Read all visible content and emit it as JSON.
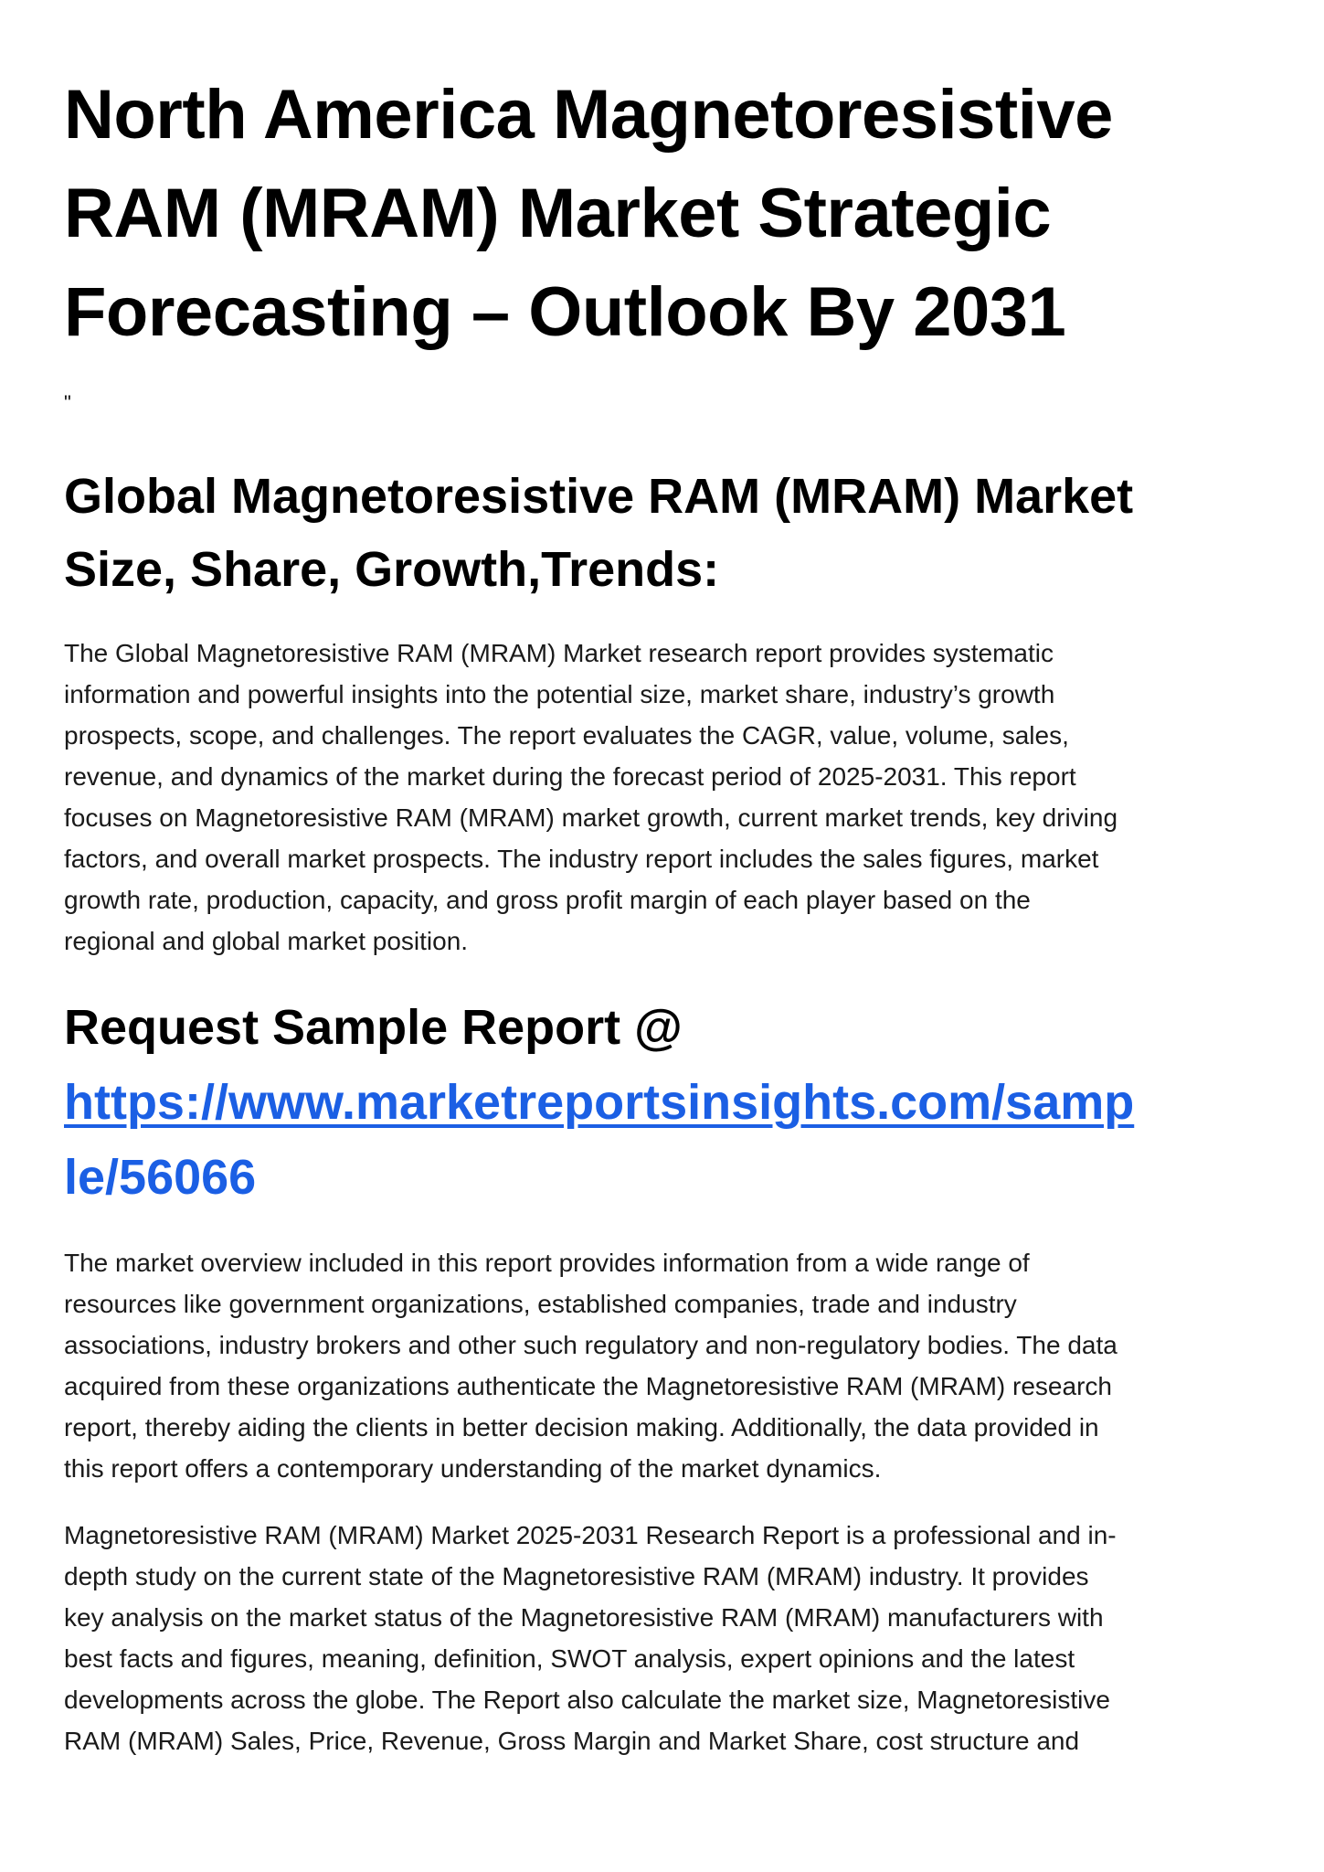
{
  "title_lines": [
    "North America Magnetoresistive",
    "RAM (MRAM) Market Strategic",
    "Forecasting – Outlook By 2031"
  ],
  "stray_quote": "\"",
  "section1": {
    "heading_lines": [
      "Global Magnetoresistive RAM (MRAM) Market",
      "Size, Share, Growth,Trends:"
    ],
    "paragraph_lines": [
      "The Global Magnetoresistive RAM (MRAM) Market research report provides systematic",
      "information and powerful insights into the potential size, market share, industry’s growth",
      "prospects, scope, and challenges. The report evaluates the CAGR, value, volume, sales,",
      "revenue, and dynamics of the market during the forecast period of 2025-2031. This report",
      "focuses on Magnetoresistive RAM (MRAM) market growth, current market trends, key driving",
      "factors, and overall market prospects. The industry report includes the sales figures, market",
      "growth rate, production, capacity, and gross profit margin of each player based on the",
      "regional and global market position."
    ]
  },
  "sample": {
    "heading": "Request Sample Report @",
    "link_lines": [
      "https://www.marketreportsinsights.com/samp",
      "le/56066"
    ],
    "link_color": "#1b5fe4"
  },
  "paragraph2_lines": [
    "The market overview included in this report provides information from a wide range of",
    "resources like government organizations, established companies, trade and industry",
    "associations, industry brokers and other such regulatory and non-regulatory bodies. The data",
    "acquired from these organizations authenticate the Magnetoresistive RAM (MRAM) research",
    "report, thereby aiding the clients in better decision making. Additionally, the data provided in",
    "this report offers a contemporary understanding of the market dynamics."
  ],
  "paragraph3_lines": [
    "Magnetoresistive RAM (MRAM) Market 2025-2031 Research Report is a professional and in-",
    "depth study on the current state of the Magnetoresistive RAM (MRAM) industry. It provides",
    "key analysis on the market status of the Magnetoresistive RAM (MRAM) manufacturers with",
    "best facts and figures, meaning, definition, SWOT analysis, expert opinions and the latest",
    "developments across the globe. The Report also calculate the market size, Magnetoresistive",
    "RAM (MRAM) Sales, Price, Revenue, Gross Margin and Market Share, cost structure and"
  ]
}
